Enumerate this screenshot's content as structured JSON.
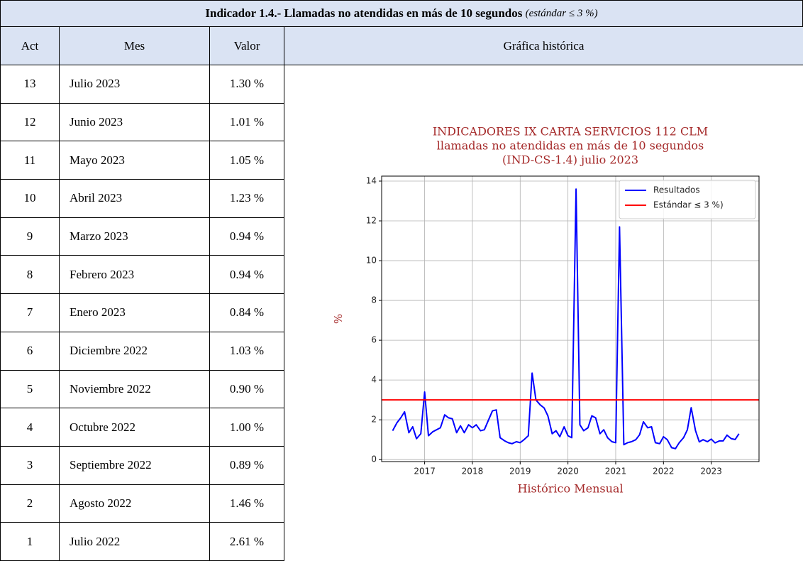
{
  "header": {
    "title": "Indicador 1.4.- Llamadas no atendidas en más de 10 segundos",
    "note": "(estándar ≤ 3 %)"
  },
  "table": {
    "columns": [
      "Act",
      "Mes",
      "Valor",
      "Gráfica histórica"
    ],
    "rows": [
      [
        "13",
        "Julio 2023",
        "1.30 %"
      ],
      [
        "12",
        "Junio 2023",
        "1.01 %"
      ],
      [
        "11",
        "Mayo 2023",
        "1.05 %"
      ],
      [
        "10",
        "Abril 2023",
        "1.23 %"
      ],
      [
        "9",
        "Marzo 2023",
        "0.94 %"
      ],
      [
        "8",
        "Febrero 2023",
        "0.94 %"
      ],
      [
        "7",
        "Enero 2023",
        "0.84 %"
      ],
      [
        "6",
        "Diciembre 2022",
        "1.03 %"
      ],
      [
        "5",
        "Noviembre 2022",
        "0.90 %"
      ],
      [
        "4",
        "Octubre 2022",
        "1.00 %"
      ],
      [
        "3",
        "Septiembre 2022",
        "0.89 %"
      ],
      [
        "2",
        "Agosto 2022",
        "1.46 %"
      ],
      [
        "1",
        "Julio 2022",
        "2.61 %"
      ]
    ]
  },
  "chart_data": {
    "type": "line",
    "title": [
      "INDICADORES IX CARTA SERVICIOS 112 CLM",
      "llamadas no atendidas en más de 10 segundos",
      "(IND-CS-1.4) julio 2023"
    ],
    "xlabel": "Histórico Mensual",
    "ylabel": "%",
    "x": [
      2016.33,
      2016.42,
      2016.5,
      2016.58,
      2016.67,
      2016.75,
      2016.83,
      2016.92,
      2017.0,
      2017.08,
      2017.17,
      2017.25,
      2017.33,
      2017.42,
      2017.5,
      2017.58,
      2017.67,
      2017.75,
      2017.83,
      2017.92,
      2018.0,
      2018.08,
      2018.17,
      2018.25,
      2018.33,
      2018.42,
      2018.5,
      2018.58,
      2018.67,
      2018.75,
      2018.83,
      2018.92,
      2019.0,
      2019.08,
      2019.17,
      2019.25,
      2019.33,
      2019.42,
      2019.5,
      2019.58,
      2019.67,
      2019.75,
      2019.83,
      2019.92,
      2020.0,
      2020.08,
      2020.17,
      2020.25,
      2020.33,
      2020.42,
      2020.5,
      2020.58,
      2020.67,
      2020.75,
      2020.83,
      2020.92,
      2021.0,
      2021.08,
      2021.17,
      2021.25,
      2021.33,
      2021.42,
      2021.5,
      2021.58,
      2021.67,
      2021.75,
      2021.83,
      2021.92,
      2022.0,
      2022.08,
      2022.17,
      2022.25,
      2022.33,
      2022.42,
      2022.5,
      2022.58,
      2022.67,
      2022.75,
      2022.83,
      2022.92,
      2023.0,
      2023.08,
      2023.17,
      2023.25,
      2023.33,
      2023.42,
      2023.5,
      2023.58
    ],
    "series": [
      {
        "name": "Resultados",
        "color": "#0000ff",
        "values": [
          1.45,
          1.85,
          2.1,
          2.4,
          1.35,
          1.65,
          1.05,
          1.3,
          3.4,
          1.2,
          1.4,
          1.5,
          1.6,
          2.25,
          2.1,
          2.05,
          1.35,
          1.7,
          1.35,
          1.75,
          1.6,
          1.75,
          1.45,
          1.5,
          1.95,
          2.45,
          2.5,
          1.1,
          0.95,
          0.85,
          0.8,
          0.9,
          0.85,
          1.0,
          1.2,
          4.35,
          3.0,
          2.75,
          2.6,
          2.2,
          1.3,
          1.45,
          1.15,
          1.65,
          1.2,
          1.1,
          13.6,
          1.75,
          1.45,
          1.6,
          2.2,
          2.1,
          1.3,
          1.5,
          1.1,
          0.9,
          0.85,
          11.7,
          0.75,
          0.85,
          0.9,
          1.0,
          1.25,
          1.9,
          1.6,
          1.65,
          0.85,
          0.8,
          1.15,
          1.0,
          0.6,
          0.55,
          0.85,
          1.1,
          1.5,
          2.61,
          1.46,
          0.89,
          1.0,
          0.9,
          1.03,
          0.84,
          0.94,
          0.94,
          1.23,
          1.05,
          1.01,
          1.3
        ]
      }
    ],
    "hline": {
      "name": "Estándar ≤ 3 %)",
      "color": "#ff0000",
      "value": 3
    },
    "xlim": [
      2016.1,
      2024.0
    ],
    "ylim": [
      -0.1,
      14.25
    ],
    "xticks": [
      2017,
      2018,
      2019,
      2020,
      2021,
      2022,
      2023
    ],
    "yticks": [
      0,
      2,
      4,
      6,
      8,
      10,
      12,
      14
    ],
    "grid": true,
    "legend": "upper right",
    "title_color": "#a52a2a"
  }
}
